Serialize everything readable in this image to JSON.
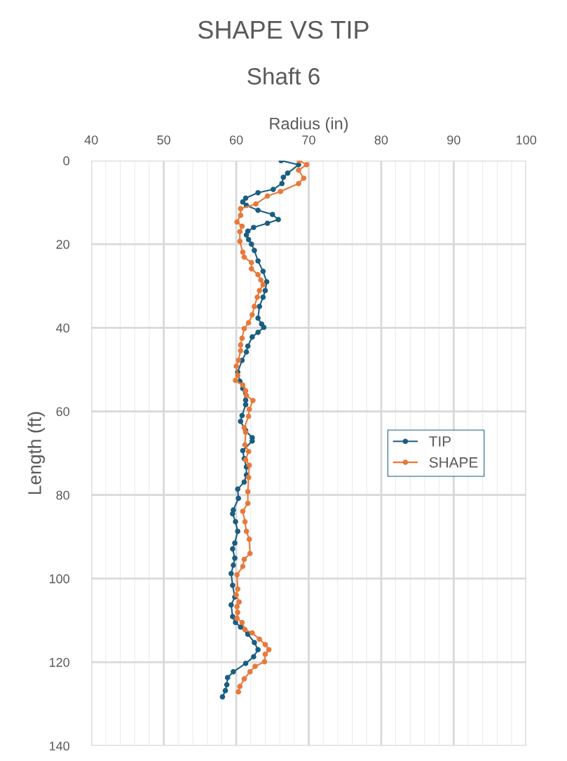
{
  "chart_data": {
    "type": "line",
    "title": "SHAPE VS TIP",
    "subtitle": "Shaft 6",
    "xlabel": "Radius (in)",
    "ylabel": "Length (ft)",
    "xlim": [
      40,
      100
    ],
    "xticks": [
      40,
      {
        "value": 42,
        "label": null
      },
      {
        "value": 44,
        "label": null
      },
      {
        "value": 46,
        "label": null
      },
      {
        "value": 48,
        "label": null
      },
      50,
      {
        "value": 52,
        "label": null
      },
      {
        "value": 54,
        "label": null
      },
      {
        "value": 56,
        "label": null
      },
      {
        "value": 58,
        "label": null
      },
      60,
      {
        "value": 62,
        "label": null
      },
      {
        "value": 64,
        "label": null
      },
      {
        "value": 66,
        "label": null
      },
      {
        "value": 68,
        "label": null
      },
      70,
      {
        "value": 72,
        "label": null
      },
      {
        "value": 74,
        "label": null
      },
      {
        "value": 76,
        "label": null
      },
      {
        "value": 78,
        "label": null
      },
      80,
      {
        "value": 82,
        "label": null
      },
      {
        "value": 84,
        "label": null
      },
      {
        "value": 86,
        "label": null
      },
      {
        "value": 88,
        "label": null
      },
      90,
      {
        "value": 92,
        "label": null
      },
      {
        "value": 94,
        "label": null
      },
      {
        "value": 96,
        "label": null
      },
      {
        "value": 98,
        "label": null
      },
      100
    ],
    "ylim": [
      140,
      0
    ],
    "yticks": [
      0,
      20,
      40,
      60,
      80,
      100,
      120,
      140
    ],
    "grid": true,
    "legend": "right",
    "marker": "circle",
    "line_style": "solid",
    "series": [
      {
        "name": "TIP",
        "color": "#1b5e80",
        "x": [
          66.2,
          68.6,
          67.1,
          66.5,
          66.3,
          65.1,
          63.0,
          61.3,
          60.9,
          61.4,
          63.0,
          65.0,
          65.8,
          64.3,
          62.4,
          61.6,
          61.4,
          61.7,
          62.1,
          62.5,
          63.0,
          63.7,
          64.2,
          64.0,
          63.7,
          63.2,
          63.0,
          63.5,
          63.8,
          63.0,
          62.2,
          61.6,
          61.4,
          60.8,
          60.2,
          60.5,
          60.9,
          61.3,
          61.3,
          60.8,
          60.6,
          61.3,
          62.2,
          62.2,
          60.9,
          61.1,
          61.4,
          61.4,
          61.1,
          60.2,
          60.3,
          59.6,
          59.5,
          59.9,
          60.2,
          59.8,
          59.5,
          59.8,
          59.6,
          59.3,
          59.5,
          59.8,
          59.3,
          59.5,
          59.9,
          60.6,
          61.6,
          62.5,
          63.0,
          62.4,
          61.3,
          59.6,
          58.8,
          58.7,
          58.5,
          58.1
        ],
        "values": [
          0,
          1.0,
          3.0,
          4.0,
          5.5,
          6.9,
          7.7,
          9.0,
          9.9,
          10.7,
          11.9,
          12.9,
          14.1,
          15.0,
          16.0,
          16.9,
          17.8,
          18.9,
          20.0,
          21.5,
          24.0,
          26.5,
          29.0,
          31.1,
          32.7,
          34.9,
          37.7,
          39.1,
          39.9,
          41.1,
          42.2,
          44.4,
          45.8,
          47.8,
          50.6,
          52.8,
          54.5,
          57.3,
          58.4,
          61.0,
          62.4,
          64.6,
          66.3,
          67.1,
          69.4,
          71.3,
          73.3,
          75.2,
          76.9,
          78.6,
          80.8,
          83.6,
          84.5,
          86.4,
          88.7,
          91.5,
          92.9,
          95.1,
          96.8,
          98.8,
          101.6,
          104.4,
          106.3,
          109.1,
          110.5,
          111.6,
          113.3,
          115.3,
          117.0,
          118.7,
          120.3,
          122.3,
          123.7,
          125.4,
          126.8,
          128.3
        ]
      },
      {
        "name": "SHAPE",
        "color": "#e8793a",
        "x": [
          68.7,
          69.7,
          68.6,
          69.3,
          68.6,
          66.1,
          64.3,
          62.7,
          60.6,
          60.6,
          60.1,
          60.8,
          60.5,
          60.5,
          60.9,
          61.1,
          62.1,
          62.1,
          63.0,
          63.4,
          63.7,
          63.2,
          62.9,
          62.5,
          62.2,
          61.7,
          61.1,
          60.8,
          60.6,
          60.6,
          60.3,
          60.0,
          60.2,
          59.9,
          60.9,
          61.3,
          61.4,
          62.3,
          61.8,
          61.7,
          61.1,
          61.3,
          61.2,
          61.7,
          61.3,
          61.8,
          61.7,
          61.6,
          61.6,
          60.9,
          61.2,
          61.4,
          61.8,
          61.9,
          61.1,
          60.9,
          60.1,
          60.2,
          60.0,
          60.4,
          60.1,
          60.2,
          60.1,
          60.8,
          61.2,
          62.2,
          63.2,
          64.0,
          64.5,
          64.0,
          63.9,
          62.6,
          61.9,
          61.1,
          60.5,
          60.3
        ],
        "values": [
          0,
          1.0,
          2.3,
          4.2,
          5.5,
          7.4,
          8.5,
          10.4,
          11.5,
          13.1,
          14.7,
          15.7,
          17.0,
          19.3,
          21.9,
          23.1,
          24.4,
          25.9,
          27.3,
          28.6,
          29.7,
          31.1,
          32.7,
          34.9,
          36.9,
          38.8,
          40.2,
          42.5,
          44.1,
          45.5,
          47.8,
          49.2,
          51.4,
          52.6,
          53.7,
          55.1,
          56.2,
          57.4,
          59.5,
          61.2,
          63.9,
          65.0,
          68.0,
          69.6,
          71.6,
          72.9,
          75.8,
          79.2,
          82.0,
          83.9,
          86.4,
          88.7,
          90.6,
          94.0,
          95.4,
          97.1,
          99.1,
          102.5,
          103.9,
          105.6,
          106.7,
          108.1,
          109.5,
          110.5,
          112.2,
          113.0,
          114.5,
          115.8,
          117.0,
          118.1,
          119.9,
          121.0,
          122.3,
          124.0,
          125.8,
          127.1
        ]
      }
    ]
  }
}
